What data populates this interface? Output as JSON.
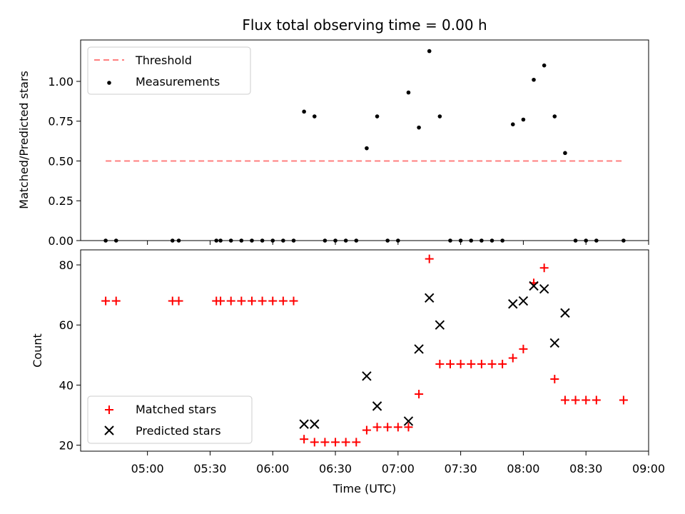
{
  "chart_data": [
    {
      "type": "scatter",
      "title": "Flux total observing time = 0.00 h",
      "ylabel": "Matched/Predicted stars",
      "xlabel": "",
      "ylim": [
        0,
        1.26
      ],
      "yticks": [
        "0.00",
        "0.25",
        "0.50",
        "0.75",
        "1.00"
      ],
      "ytick_values": [
        0,
        0.25,
        0.5,
        0.75,
        1.0
      ],
      "legend": {
        "placement": "upper-left",
        "entries": [
          "Threshold",
          "Measurements"
        ]
      },
      "threshold": {
        "name": "Threshold",
        "value": 0.5,
        "x_start": "04:40",
        "x_end": "08:48",
        "color": "#ff7f7f"
      },
      "series": [
        {
          "name": "Measurements",
          "color": "#000000",
          "points": [
            [
              "04:40",
              0
            ],
            [
              "04:45",
              0
            ],
            [
              "05:12",
              0
            ],
            [
              "05:15",
              0
            ],
            [
              "05:33",
              0
            ],
            [
              "05:35",
              0
            ],
            [
              "05:40",
              0
            ],
            [
              "05:45",
              0
            ],
            [
              "05:50",
              0
            ],
            [
              "05:55",
              0
            ],
            [
              "06:00",
              0
            ],
            [
              "06:05",
              0
            ],
            [
              "06:10",
              0
            ],
            [
              "06:15",
              0.81
            ],
            [
              "06:20",
              0.78
            ],
            [
              "06:25",
              0
            ],
            [
              "06:30",
              0
            ],
            [
              "06:35",
              0
            ],
            [
              "06:40",
              0
            ],
            [
              "06:45",
              0.58
            ],
            [
              "06:50",
              0.78
            ],
            [
              "06:55",
              0
            ],
            [
              "07:00",
              0
            ],
            [
              "07:05",
              0.93
            ],
            [
              "07:10",
              0.71
            ],
            [
              "07:15",
              1.19
            ],
            [
              "07:20",
              0.78
            ],
            [
              "07:25",
              0
            ],
            [
              "07:30",
              0
            ],
            [
              "07:35",
              0
            ],
            [
              "07:40",
              0
            ],
            [
              "07:45",
              0
            ],
            [
              "07:50",
              0
            ],
            [
              "07:55",
              0.73
            ],
            [
              "08:00",
              0.76
            ],
            [
              "08:05",
              1.01
            ],
            [
              "08:10",
              1.1
            ],
            [
              "08:15",
              0.78
            ],
            [
              "08:20",
              0.55
            ],
            [
              "08:25",
              0
            ],
            [
              "08:30",
              0
            ],
            [
              "08:35",
              0
            ],
            [
              "08:48",
              0
            ]
          ]
        }
      ]
    },
    {
      "type": "scatter",
      "title": "",
      "ylabel": "Count",
      "xlabel": "Time (UTC)",
      "ylim": [
        18,
        85
      ],
      "yticks": [
        "20",
        "40",
        "60",
        "80"
      ],
      "ytick_values": [
        20,
        40,
        60,
        80
      ],
      "xlim": [
        "04:28",
        "09:00"
      ],
      "xticks": [
        "05:00",
        "05:30",
        "06:00",
        "06:30",
        "07:00",
        "07:30",
        "08:00",
        "08:30",
        "09:00"
      ],
      "legend": {
        "placement": "lower-left",
        "entries": [
          "Matched stars",
          "Predicted stars"
        ]
      },
      "series": [
        {
          "name": "Matched stars",
          "marker": "plus",
          "color": "#ff0000",
          "points": [
            [
              "04:40",
              68
            ],
            [
              "04:45",
              68
            ],
            [
              "05:12",
              68
            ],
            [
              "05:15",
              68
            ],
            [
              "05:33",
              68
            ],
            [
              "05:35",
              68
            ],
            [
              "05:40",
              68
            ],
            [
              "05:45",
              68
            ],
            [
              "05:50",
              68
            ],
            [
              "05:55",
              68
            ],
            [
              "06:00",
              68
            ],
            [
              "06:05",
              68
            ],
            [
              "06:10",
              68
            ],
            [
              "06:15",
              22
            ],
            [
              "06:20",
              21
            ],
            [
              "06:25",
              21
            ],
            [
              "06:30",
              21
            ],
            [
              "06:35",
              21
            ],
            [
              "06:40",
              21
            ],
            [
              "06:45",
              25
            ],
            [
              "06:50",
              26
            ],
            [
              "06:55",
              26
            ],
            [
              "07:00",
              26
            ],
            [
              "07:05",
              26
            ],
            [
              "07:10",
              37
            ],
            [
              "07:15",
              82
            ],
            [
              "07:20",
              47
            ],
            [
              "07:25",
              47
            ],
            [
              "07:30",
              47
            ],
            [
              "07:35",
              47
            ],
            [
              "07:40",
              47
            ],
            [
              "07:45",
              47
            ],
            [
              "07:50",
              47
            ],
            [
              "07:55",
              49
            ],
            [
              "08:00",
              52
            ],
            [
              "08:05",
              74
            ],
            [
              "08:10",
              79
            ],
            [
              "08:15",
              42
            ],
            [
              "08:20",
              35
            ],
            [
              "08:25",
              35
            ],
            [
              "08:30",
              35
            ],
            [
              "08:35",
              35
            ],
            [
              "08:48",
              35
            ]
          ]
        },
        {
          "name": "Predicted stars",
          "marker": "x",
          "color": "#000000",
          "points": [
            [
              "06:15",
              27
            ],
            [
              "06:20",
              27
            ],
            [
              "06:45",
              43
            ],
            [
              "06:50",
              33
            ],
            [
              "07:05",
              28
            ],
            [
              "07:10",
              52
            ],
            [
              "07:15",
              69
            ],
            [
              "07:20",
              60
            ],
            [
              "07:55",
              67
            ],
            [
              "08:00",
              68
            ],
            [
              "08:05",
              73
            ],
            [
              "08:10",
              72
            ],
            [
              "08:15",
              54
            ],
            [
              "08:20",
              64
            ]
          ]
        }
      ]
    }
  ]
}
